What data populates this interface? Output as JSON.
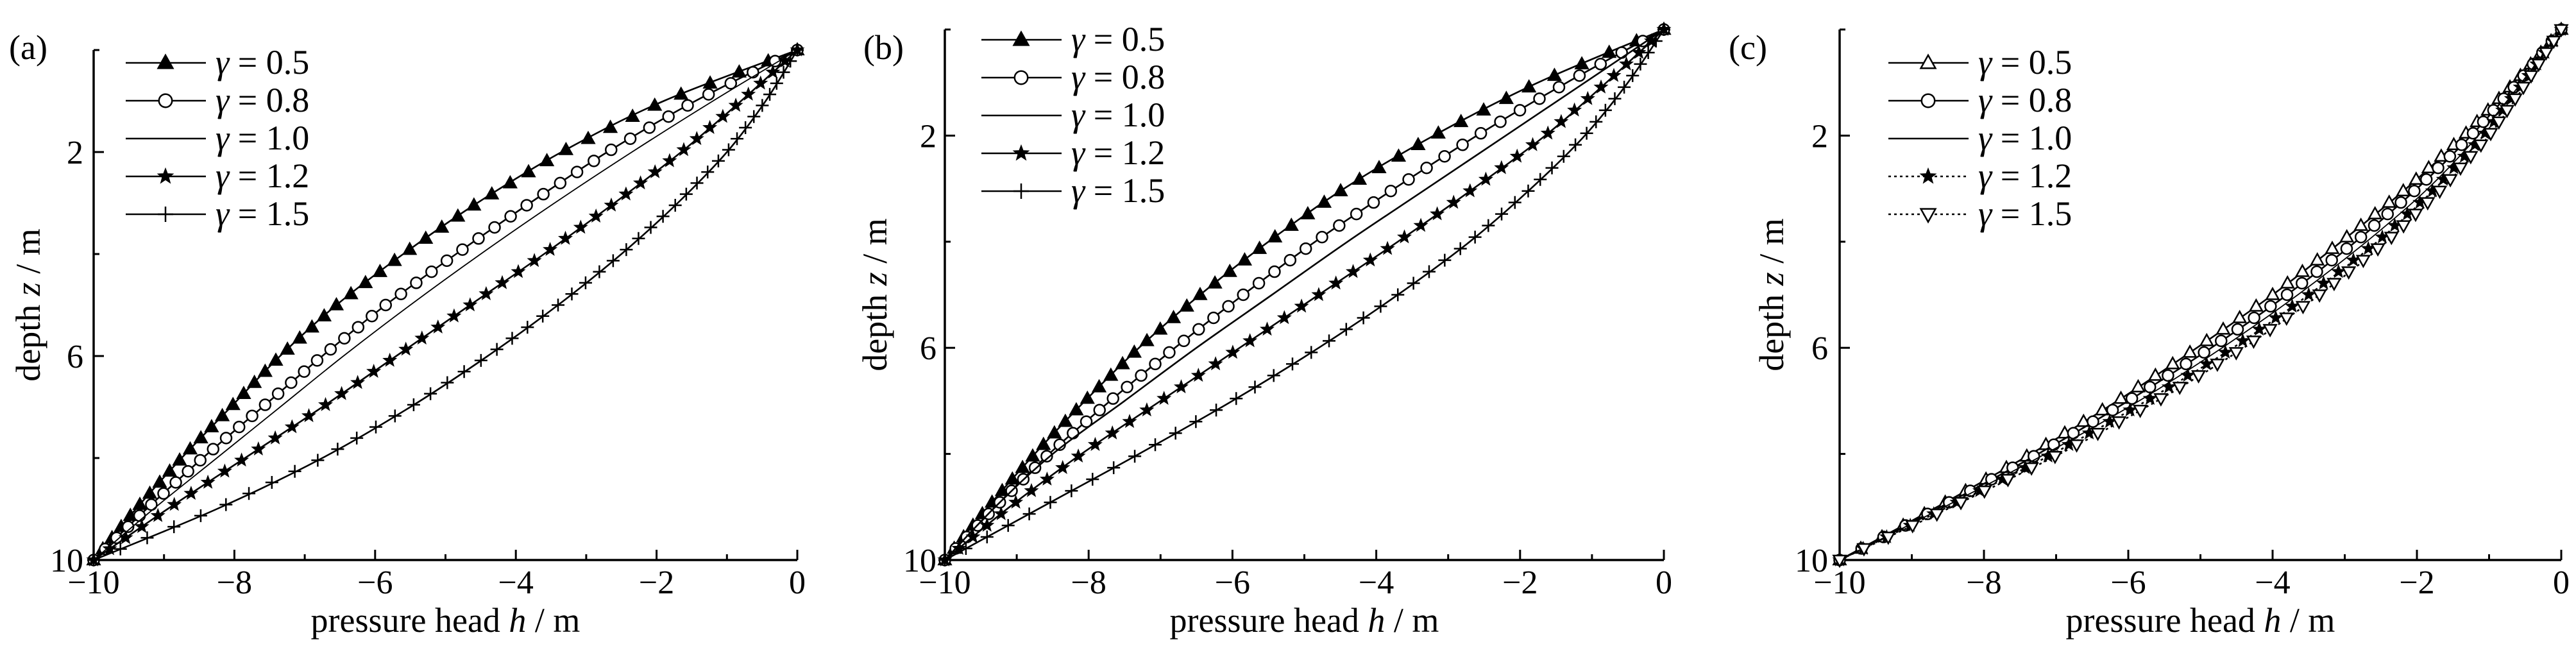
{
  "chart_data": [
    {
      "type": "line",
      "panel_label": "(a)",
      "xlabel": "pressure head h / m",
      "ylabel": "depth z / m",
      "xlim": [
        -10,
        0
      ],
      "ylim": [
        10,
        0
      ],
      "y_inverted": true,
      "xticks": [
        -10,
        -8,
        -6,
        -4,
        -2,
        0
      ],
      "yticks": [
        2,
        6,
        10
      ],
      "legend": "top-left",
      "series": [
        {
          "name": "γ = 0.5",
          "marker": "triangle-filled",
          "line": "solid",
          "z": [
            0,
            1,
            2,
            3,
            4,
            5,
            6,
            7,
            8,
            9,
            10
          ],
          "h": [
            0,
            -1.9,
            -3.35,
            -4.55,
            -5.6,
            -6.55,
            -7.35,
            -8.05,
            -8.75,
            -9.4,
            -10
          ]
        },
        {
          "name": "γ = 0.8",
          "marker": "circle-open",
          "line": "solid",
          "z": [
            0,
            1,
            2,
            3,
            4,
            5,
            6,
            7,
            8,
            9,
            10
          ],
          "h": [
            0,
            -1.45,
            -2.7,
            -3.8,
            -4.85,
            -5.85,
            -6.75,
            -7.6,
            -8.45,
            -9.25,
            -10
          ]
        },
        {
          "name": "γ = 1.0",
          "marker": "none",
          "line": "solid-thin",
          "z": [
            0,
            1,
            2,
            3,
            4,
            5,
            6,
            7,
            8,
            9,
            10
          ],
          "h": [
            0,
            -1.2,
            -2.35,
            -3.45,
            -4.5,
            -5.5,
            -6.45,
            -7.35,
            -8.25,
            -9.15,
            -10
          ]
        },
        {
          "name": "γ = 1.2",
          "marker": "star",
          "line": "solid",
          "z": [
            0,
            1,
            2,
            3,
            4,
            5,
            6,
            7,
            8,
            9,
            10
          ],
          "h": [
            0,
            -0.8,
            -1.65,
            -2.6,
            -3.6,
            -4.65,
            -5.7,
            -6.75,
            -7.85,
            -8.95,
            -10
          ]
        },
        {
          "name": "γ = 1.5",
          "marker": "plus",
          "line": "solid",
          "z": [
            0,
            1,
            2,
            3,
            4,
            5,
            6,
            7,
            8,
            9,
            10
          ],
          "h": [
            0,
            -0.45,
            -1.0,
            -1.7,
            -2.5,
            -3.4,
            -4.4,
            -5.5,
            -6.75,
            -8.25,
            -10
          ]
        }
      ]
    },
    {
      "type": "line",
      "panel_label": "(b)",
      "xlabel": "pressure head h / m",
      "ylabel": "depth z / m",
      "xlim": [
        -10,
        0
      ],
      "ylim": [
        10,
        0
      ],
      "y_inverted": true,
      "xticks": [
        -10,
        -8,
        -6,
        -4,
        -2,
        0
      ],
      "yticks": [
        2,
        6,
        10
      ],
      "legend": "top-left",
      "series": [
        {
          "name": "γ = 0.5",
          "marker": "triangle-filled",
          "line": "solid",
          "z": [
            0,
            1,
            2,
            3,
            4,
            5,
            6,
            7,
            8,
            9,
            10
          ],
          "h": [
            0,
            -1.75,
            -3.2,
            -4.45,
            -5.5,
            -6.45,
            -7.3,
            -8.05,
            -8.75,
            -9.4,
            -10
          ]
        },
        {
          "name": "γ = 0.8",
          "marker": "circle-open",
          "line": "solid",
          "z": [
            0,
            1,
            2,
            3,
            4,
            5,
            6,
            7,
            8,
            9,
            10
          ],
          "h": [
            0,
            -1.35,
            -2.6,
            -3.75,
            -4.85,
            -5.85,
            -6.8,
            -7.7,
            -8.55,
            -9.3,
            -10
          ]
        },
        {
          "name": "γ = 1.0",
          "marker": "none",
          "line": "solid",
          "z": [
            0,
            1,
            2,
            3,
            4,
            5,
            6,
            7,
            8,
            9,
            10
          ],
          "h": [
            0,
            -1.1,
            -2.2,
            -3.3,
            -4.4,
            -5.45,
            -6.5,
            -7.5,
            -8.5,
            -9.3,
            -10
          ]
        },
        {
          "name": "γ = 1.2",
          "marker": "star",
          "line": "solid",
          "z": [
            0,
            1,
            2,
            3,
            4,
            5,
            6,
            7,
            8,
            9,
            10
          ],
          "h": [
            0,
            -0.8,
            -1.65,
            -2.65,
            -3.7,
            -4.8,
            -5.9,
            -7.0,
            -8.1,
            -9.1,
            -10
          ]
        },
        {
          "name": "γ = 1.5",
          "marker": "plus",
          "line": "solid",
          "z": [
            0,
            1,
            2,
            3,
            4,
            5,
            6,
            7,
            8,
            9,
            10
          ],
          "h": [
            0,
            -0.5,
            -1.1,
            -1.85,
            -2.7,
            -3.7,
            -4.8,
            -6.0,
            -7.3,
            -8.65,
            -10
          ]
        }
      ]
    },
    {
      "type": "line",
      "panel_label": "(c)",
      "xlabel": "pressure head h / m",
      "ylabel": "depth z / m",
      "xlim": [
        -10,
        0
      ],
      "ylim": [
        10,
        0
      ],
      "y_inverted": true,
      "xticks": [
        -10,
        -8,
        -6,
        -4,
        -2,
        0
      ],
      "yticks": [
        2,
        6,
        10
      ],
      "legend": "top-left",
      "series": [
        {
          "name": "γ = 0.5",
          "marker": "triangle-open",
          "line": "solid",
          "z": [
            0,
            1,
            2,
            3,
            4,
            5,
            6,
            7,
            8,
            9,
            10
          ],
          "h": [
            0,
            -0.65,
            -1.35,
            -2.15,
            -3.05,
            -4.0,
            -5.05,
            -6.15,
            -7.35,
            -8.65,
            -10
          ]
        },
        {
          "name": "γ = 0.8",
          "marker": "circle-open",
          "line": "solid",
          "z": [
            0,
            1,
            2,
            3,
            4,
            5,
            6,
            7,
            8,
            9,
            10
          ],
          "h": [
            0,
            -0.6,
            -1.25,
            -2.0,
            -2.85,
            -3.8,
            -4.85,
            -6.0,
            -7.25,
            -8.6,
            -10
          ]
        },
        {
          "name": "γ = 1.0",
          "marker": "none",
          "line": "solid-thin",
          "z": [
            0,
            1,
            2,
            3,
            4,
            5,
            6,
            7,
            8,
            9,
            10
          ],
          "h": [
            0,
            -0.55,
            -1.15,
            -1.85,
            -2.7,
            -3.65,
            -4.7,
            -5.85,
            -7.15,
            -8.55,
            -10
          ]
        },
        {
          "name": "γ = 1.2",
          "marker": "star",
          "line": "dotted",
          "z": [
            0,
            1,
            2,
            3,
            4,
            5,
            6,
            7,
            8,
            9,
            10
          ],
          "h": [
            0,
            -0.52,
            -1.08,
            -1.75,
            -2.55,
            -3.5,
            -4.55,
            -5.75,
            -7.05,
            -8.5,
            -10
          ]
        },
        {
          "name": "γ = 1.5",
          "marker": "triangle-down-open",
          "line": "dotted",
          "z": [
            0,
            1,
            2,
            3,
            4,
            5,
            6,
            7,
            8,
            9,
            10
          ],
          "h": [
            0,
            -0.48,
            -1.0,
            -1.65,
            -2.42,
            -3.35,
            -4.4,
            -5.6,
            -6.95,
            -8.45,
            -10
          ]
        }
      ]
    }
  ]
}
